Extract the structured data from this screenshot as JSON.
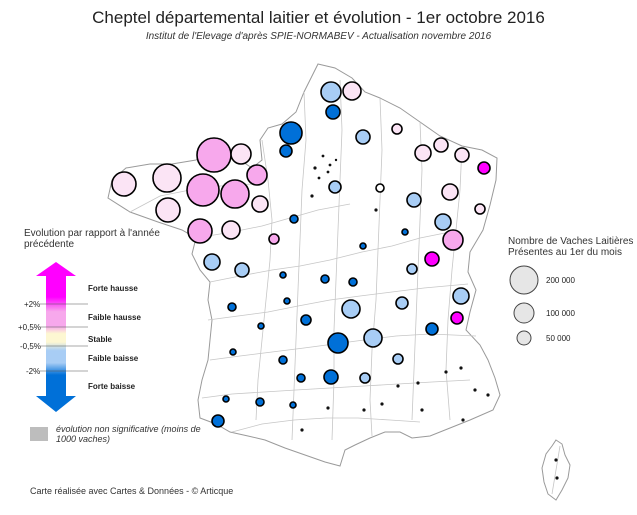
{
  "title": "Cheptel départemental laitier et évolution - 1er octobre 2016",
  "subtitle": "Institut de l'Elevage d'après SPIE-NORMABEV - Actualisation novembre 2016",
  "evolution_legend": {
    "heading": "Evolution par rapport à l'année précédente",
    "categories": [
      {
        "label": "Forte hausse",
        "color": "#ff00ff"
      },
      {
        "label": "Faible hausse",
        "color": "#f7a8ec"
      },
      {
        "label": "Stable",
        "color": "#fdf7d2"
      },
      {
        "label": "Faible baisse",
        "color": "#a8cdf5"
      },
      {
        "label": "Forte baisse",
        "color": "#0070d8"
      }
    ],
    "thresholds": [
      "+2%",
      "+0,5%",
      "-0,5%",
      "-2%"
    ],
    "nonsignificant_label": "évolution non significative (moins de 1000 vaches)",
    "nonsignificant_color": "#bdbdbd"
  },
  "size_legend": {
    "heading": "Nombre de Vaches Laitières Présentes au 1er du mois",
    "values": [
      {
        "value": 200000,
        "label": "200 000"
      },
      {
        "value": 100000,
        "label": "100 000"
      },
      {
        "value": 50000,
        "label": "50 000"
      }
    ]
  },
  "credit": "Carte réalisée avec Cartes & Données - © Articque",
  "colors": {
    "france_fill": "#ffffff",
    "border": "#b8b8b8",
    "circle_stroke": "#000000"
  }
}
